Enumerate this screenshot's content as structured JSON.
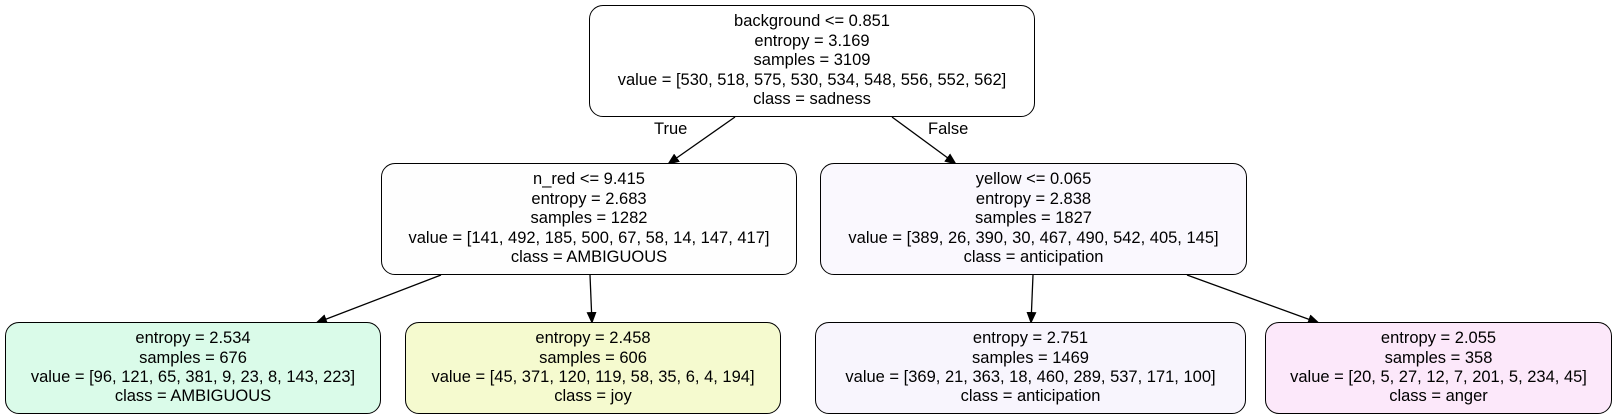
{
  "edge_labels": {
    "true_label": "True",
    "false_label": "False"
  },
  "nodes": {
    "root": {
      "lines": [
        "background <= 0.851",
        "entropy = 3.169",
        "samples = 3109",
        "value = [530, 518, 575, 530, 534, 548, 556, 552, 562]",
        "class = sadness"
      ],
      "fill": "#ffffff"
    },
    "left": {
      "lines": [
        "n_red <= 9.415",
        "entropy = 2.683",
        "samples = 1282",
        "value = [141, 492, 185, 500, 67, 58, 14, 147, 417]",
        "class = AMBIGUOUS"
      ],
      "fill": "#fefefe"
    },
    "right": {
      "lines": [
        "yellow <= 0.065",
        "entropy = 2.838",
        "samples = 1827",
        "value = [389, 26, 390, 30, 467, 490, 542, 405, 145]",
        "class = anticipation"
      ],
      "fill": "#faf8fe"
    },
    "leaf1": {
      "lines": [
        "entropy = 2.534",
        "samples = 676",
        "value = [96, 121, 65, 381, 9, 23, 8, 143, 223]",
        "class = AMBIGUOUS"
      ],
      "fill": "#dafbe9"
    },
    "leaf2": {
      "lines": [
        "entropy = 2.458",
        "samples = 606",
        "value = [45, 371, 120, 119, 58, 35, 6, 4, 194]",
        "class = joy"
      ],
      "fill": "#f5facf"
    },
    "leaf3": {
      "lines": [
        "entropy = 2.751",
        "samples = 1469",
        "value = [369, 21, 363, 18, 460, 289, 537, 171, 100]",
        "class = anticipation"
      ],
      "fill": "#f8f5fd"
    },
    "leaf4": {
      "lines": [
        "entropy = 2.055",
        "samples = 358",
        "value = [20, 5, 27, 12, 7, 201, 5, 234, 45]",
        "class = anger"
      ],
      "fill": "#fce8fa"
    }
  }
}
